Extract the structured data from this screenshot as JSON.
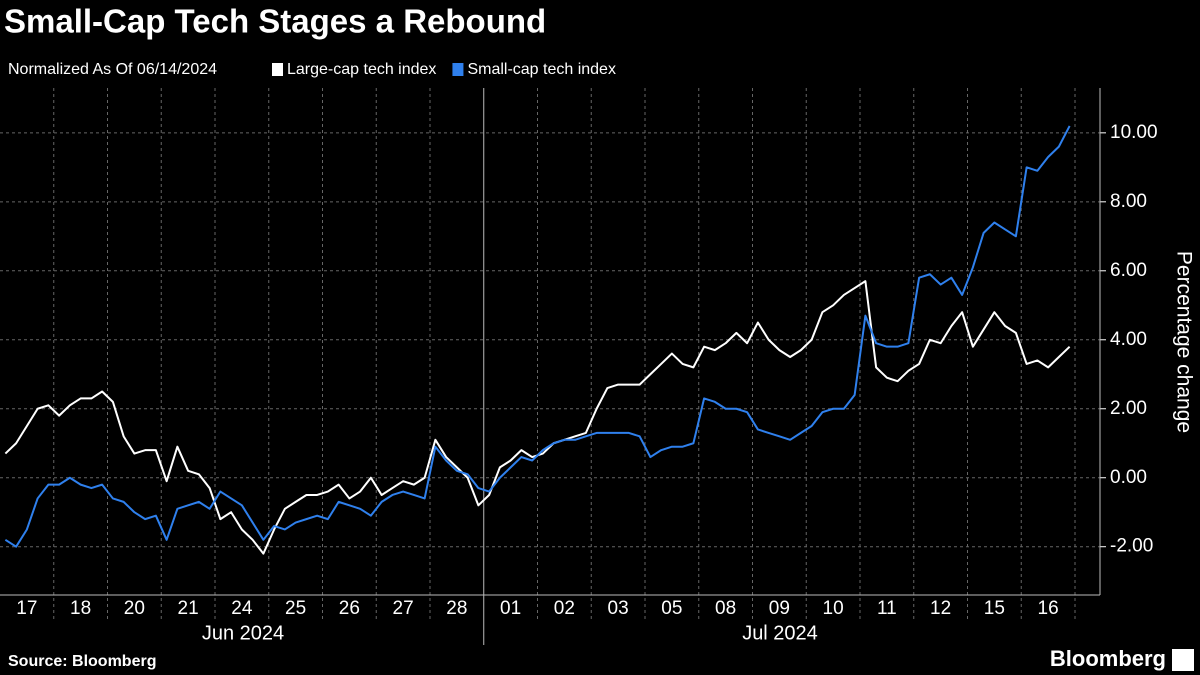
{
  "chart_data": {
    "type": "line",
    "title": "Small-Cap Tech Stages a Rebound",
    "subtitle": "Normalized As Of 06/14/2024",
    "y_label": "Percentage change",
    "source": "Source: Bloomberg",
    "brand": "Bloomberg",
    "x_groups": [
      "Jun 2024",
      "Jul 2024"
    ],
    "categories": [
      null,
      null,
      "17",
      null,
      null,
      null,
      null,
      "18",
      null,
      null,
      null,
      null,
      "20",
      null,
      null,
      null,
      null,
      "21",
      null,
      null,
      null,
      null,
      "24",
      null,
      null,
      null,
      null,
      "25",
      null,
      null,
      null,
      null,
      "26",
      null,
      null,
      null,
      null,
      "27",
      null,
      null,
      null,
      null,
      "28",
      null,
      null,
      null,
      null,
      "01",
      null,
      null,
      null,
      null,
      "02",
      null,
      null,
      null,
      null,
      "03",
      null,
      null,
      null,
      null,
      "05",
      null,
      null,
      null,
      null,
      "08",
      null,
      null,
      null,
      null,
      "09",
      null,
      null,
      null,
      null,
      "10",
      null,
      null,
      null,
      null,
      "11",
      null,
      null,
      null,
      null,
      "12",
      null,
      null,
      null,
      null,
      "15",
      null,
      null,
      null,
      null,
      "16",
      null,
      null
    ],
    "series": [
      {
        "name": "Large-cap tech index",
        "color": "#ffffff",
        "values": [
          0.7,
          1.0,
          1.5,
          2.0,
          2.1,
          1.8,
          2.1,
          2.3,
          2.3,
          2.5,
          2.2,
          1.2,
          0.7,
          0.8,
          0.8,
          -0.1,
          0.9,
          0.2,
          0.1,
          -0.3,
          -1.2,
          -1.0,
          -1.5,
          -1.8,
          -2.2,
          -1.5,
          -0.9,
          -0.7,
          -0.5,
          -0.5,
          -0.4,
          -0.2,
          -0.6,
          -0.4,
          0.0,
          -0.5,
          -0.3,
          -0.1,
          -0.2,
          0.0,
          1.1,
          0.6,
          0.3,
          0.0,
          -0.8,
          -0.5,
          0.3,
          0.5,
          0.8,
          0.6,
          0.7,
          1.0,
          1.1,
          1.2,
          1.3,
          2.0,
          2.6,
          2.7,
          2.7,
          2.7,
          3.0,
          3.3,
          3.6,
          3.3,
          3.2,
          3.8,
          3.7,
          3.9,
          4.2,
          3.9,
          4.5,
          4.0,
          3.7,
          3.5,
          3.7,
          4.0,
          4.8,
          5.0,
          5.3,
          5.5,
          5.7,
          3.2,
          2.9,
          2.8,
          3.1,
          3.3,
          4.0,
          3.9,
          4.4,
          4.8,
          3.8,
          4.3,
          4.8,
          4.4,
          4.2,
          3.3,
          3.4,
          3.2,
          3.5,
          3.8
        ]
      },
      {
        "name": "Small-cap tech index",
        "color": "#2f80ed",
        "values": [
          -1.8,
          -2.0,
          -1.5,
          -0.6,
          -0.2,
          -0.2,
          0.0,
          -0.2,
          -0.3,
          -0.2,
          -0.6,
          -0.7,
          -1.0,
          -1.2,
          -1.1,
          -1.8,
          -0.9,
          -0.8,
          -0.7,
          -0.9,
          -0.4,
          -0.6,
          -0.8,
          -1.3,
          -1.8,
          -1.4,
          -1.5,
          -1.3,
          -1.2,
          -1.1,
          -1.2,
          -0.7,
          -0.8,
          -0.9,
          -1.1,
          -0.7,
          -0.5,
          -0.4,
          -0.5,
          -0.6,
          0.9,
          0.5,
          0.2,
          0.1,
          -0.3,
          -0.4,
          0.0,
          0.3,
          0.6,
          0.5,
          0.8,
          1.0,
          1.1,
          1.1,
          1.2,
          1.3,
          1.3,
          1.3,
          1.3,
          1.2,
          0.6,
          0.8,
          0.9,
          0.9,
          1.0,
          2.3,
          2.2,
          2.0,
          2.0,
          1.9,
          1.4,
          1.3,
          1.2,
          1.1,
          1.3,
          1.5,
          1.9,
          2.0,
          2.0,
          2.4,
          4.7,
          3.9,
          3.8,
          3.8,
          3.9,
          5.8,
          5.9,
          5.6,
          5.8,
          5.3,
          6.1,
          7.1,
          7.4,
          7.2,
          7.0,
          9.0,
          8.9,
          9.3,
          9.6,
          10.2
        ]
      }
    ],
    "ylim": [
      -3.4,
      11.3
    ],
    "yticks": [
      {
        "value": -2,
        "label": "-2.00"
      },
      {
        "value": 0,
        "label": "0.00"
      },
      {
        "value": 2,
        "label": "2.00"
      },
      {
        "value": 4,
        "label": "4.00"
      },
      {
        "value": 6,
        "label": "6.00"
      },
      {
        "value": 8,
        "label": "8.00"
      },
      {
        "value": 10,
        "label": "10.00"
      }
    ],
    "grid": true
  }
}
